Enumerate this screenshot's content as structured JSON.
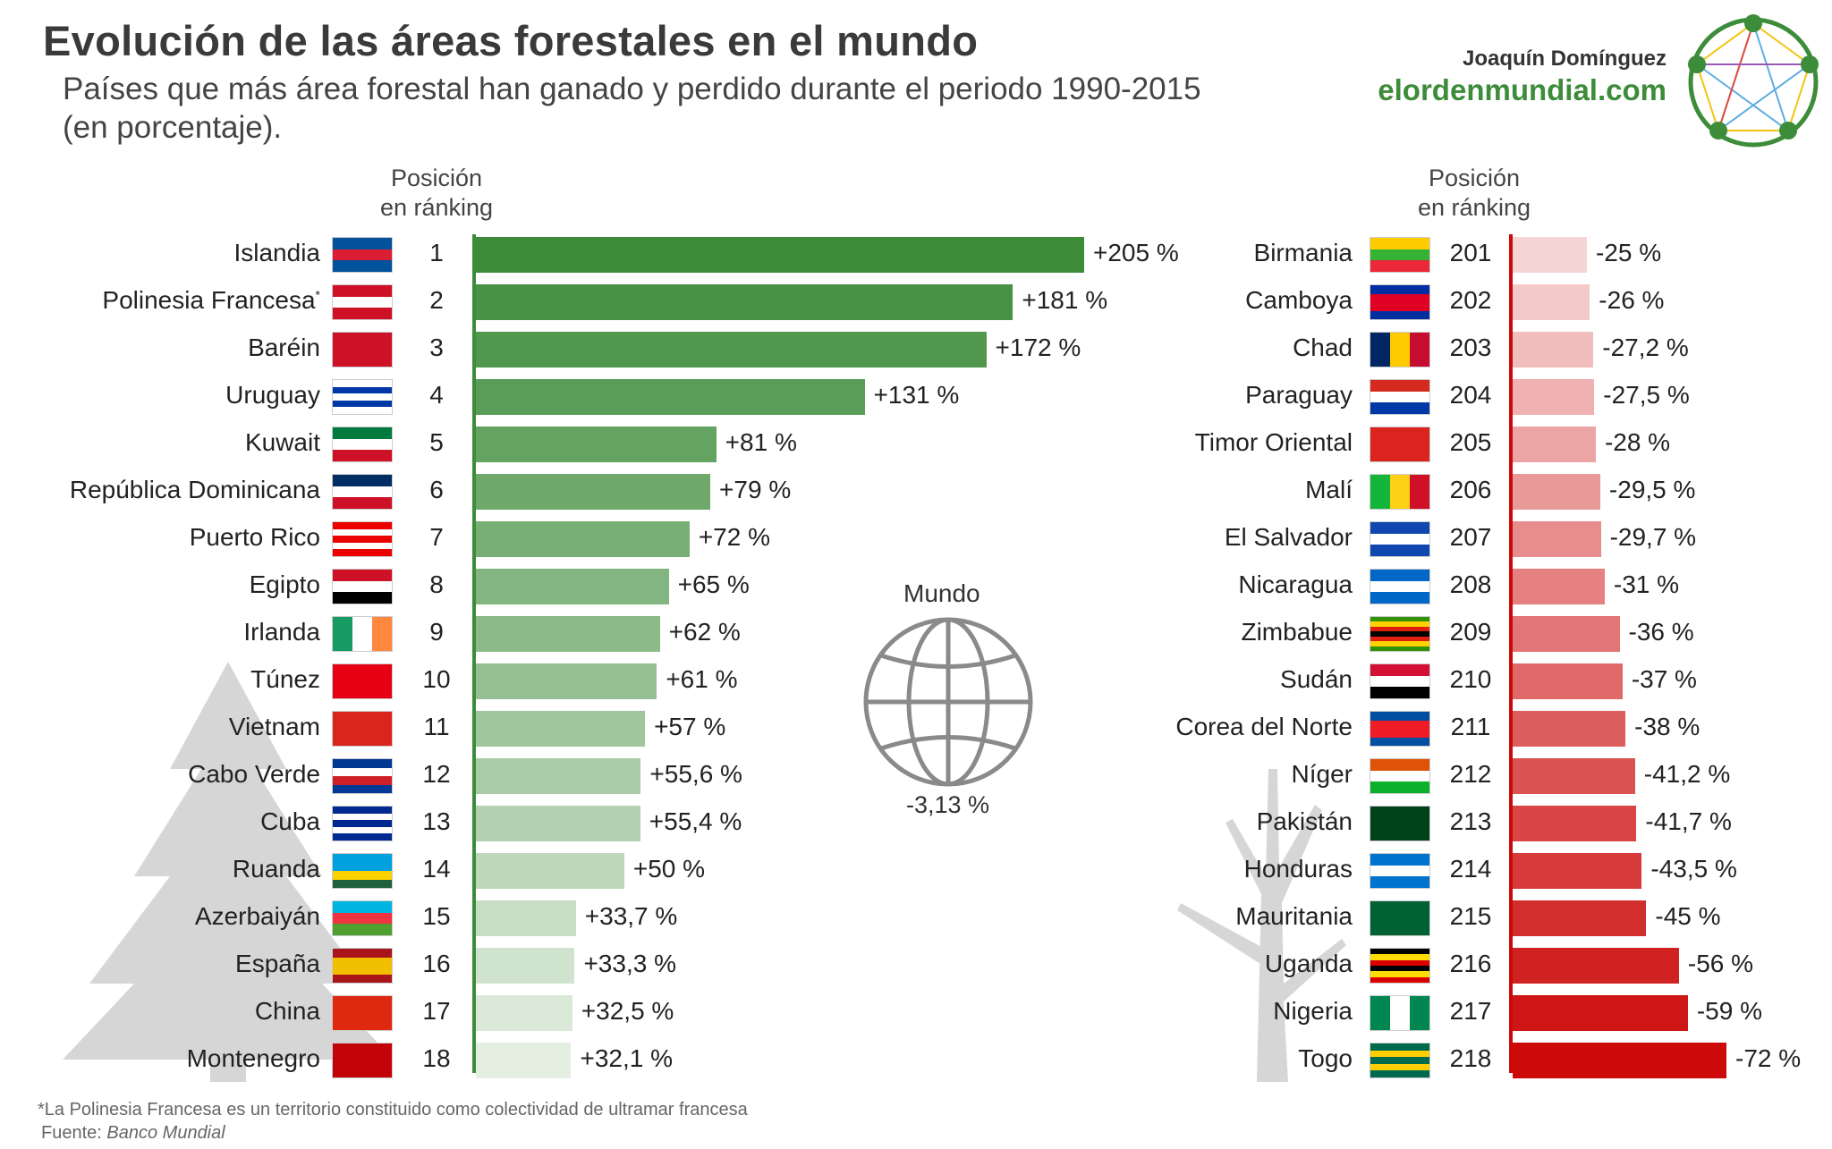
{
  "title": "Evolución de las áreas forestales en el mundo",
  "subtitle": "Países que más área forestal han ganado y perdido durante el periodo 1990-2015 (en porcentaje).",
  "author": "Joaquín Domínguez",
  "site": "elordenmundial.com",
  "rank_header_line1": "Posición",
  "rank_header_line2": "en ránking",
  "world": {
    "label": "Mundo",
    "value": "-3,13 %",
    "icon": "globe-icon"
  },
  "footnote": "*La Polinesia Francesa es un territorio constituido como colectividad de ultramar francesa",
  "source_prefix": "Fuente: ",
  "source_name": "Banco Mundial",
  "colors": {
    "gain_dark": "#3d8c3a",
    "gain_light": "#e4efe2",
    "loss_light": "#f6d5d5",
    "loss_dark": "#cc0a0a",
    "accent": "#3d8c3a"
  },
  "chart_data": [
    {
      "type": "bar",
      "categories": [
        "Islandia",
        "Polinesia Francesa",
        "Baréin",
        "Uruguay",
        "Kuwait",
        "República Dominicana",
        "Puerto Rico",
        "Egipto",
        "Irlanda",
        "Túnez",
        "Vietnam",
        "Cabo Verde",
        "Cuba",
        "Ruanda",
        "Azerbaiyán",
        "España",
        "China",
        "Montenegro"
      ],
      "ranks": [
        1,
        2,
        3,
        4,
        5,
        6,
        7,
        8,
        9,
        10,
        11,
        12,
        13,
        14,
        15,
        16,
        17,
        18
      ],
      "values": [
        205,
        181,
        172,
        131,
        81,
        79,
        72,
        65,
        62,
        61,
        57,
        55.6,
        55.4,
        50,
        33.7,
        33.3,
        32.5,
        32.1
      ],
      "labels": [
        "+205 %",
        "+181 %",
        "+172 %",
        "+131 %",
        "+81 %",
        "+79 %",
        "+72 %",
        "+65 %",
        "+62 %",
        "+61 %",
        "+57 %",
        "+55,6 %",
        "+55,4 %",
        "+50 %",
        "+33,7 %",
        "+33,3 %",
        "+32,5 %",
        "+32,1 %"
      ],
      "asterisk_index": 1,
      "orientation": "horizontal"
    },
    {
      "type": "bar",
      "categories": [
        "Birmania",
        "Camboya",
        "Chad",
        "Paraguay",
        "Timor Oriental",
        "Malí",
        "El Salvador",
        "Nicaragua",
        "Zimbabue",
        "Sudán",
        "Corea del Norte",
        "Níger",
        "Pakistán",
        "Honduras",
        "Mauritania",
        "Uganda",
        "Nigeria",
        "Togo"
      ],
      "ranks": [
        201,
        202,
        203,
        204,
        205,
        206,
        207,
        208,
        209,
        210,
        211,
        212,
        213,
        214,
        215,
        216,
        217,
        218
      ],
      "values": [
        -25,
        -26,
        -27.2,
        -27.5,
        -28,
        -29.5,
        -29.7,
        -31,
        -36,
        -37,
        -38,
        -41.2,
        -41.7,
        -43.5,
        -45,
        -56,
        -59,
        -72
      ],
      "labels": [
        "-25 %",
        "-26 %",
        "-27,2 %",
        "-27,5 %",
        "-28 %",
        "-29,5 %",
        "-29,7 %",
        "-31 %",
        "-36 %",
        "-37 %",
        "-38 %",
        "-41,2 %",
        "-41,7 %",
        "-43,5 %",
        "-45 %",
        "-56 %",
        "-59 %",
        "-72 %"
      ],
      "orientation": "horizontal"
    }
  ]
}
